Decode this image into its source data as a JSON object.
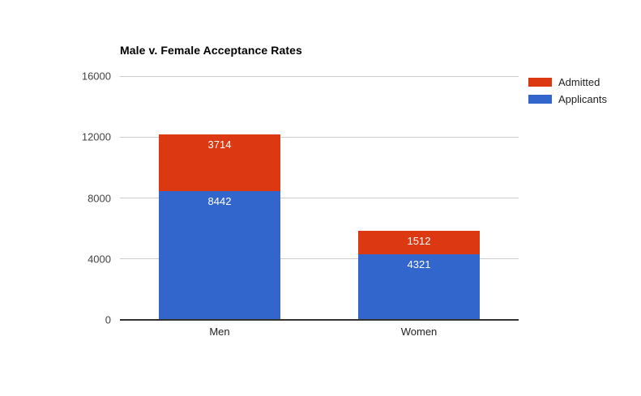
{
  "chart_data": {
    "type": "bar",
    "stacked": true,
    "orientation": "vertical",
    "title": "Male v. Female Acceptance Rates",
    "categories": [
      "Men",
      "Women"
    ],
    "series": [
      {
        "name": "Admitted",
        "color": "#dc3912",
        "values": [
          3714,
          1512
        ]
      },
      {
        "name": "Applicants",
        "color": "#3366cc",
        "values": [
          8442,
          4321
        ]
      }
    ],
    "stack_order_bottom_to_top": [
      "Applicants",
      "Admitted"
    ],
    "stack_totals": [
      12156,
      5833
    ],
    "xlabel": "",
    "ylabel": "",
    "ylim": [
      0,
      16000
    ],
    "y_ticks": [
      16000,
      12000,
      8000,
      4000,
      0
    ],
    "grid": true,
    "legend_position": "right",
    "bar_value_labels": true
  },
  "colors": {
    "background": "#ffffff",
    "title": "#000000",
    "gridline": "#cccccc",
    "axis_line": "#333333",
    "tick_label": "#444444",
    "category_label": "#222222",
    "legend_label": "#222222",
    "bar_label": "#ffffff"
  }
}
